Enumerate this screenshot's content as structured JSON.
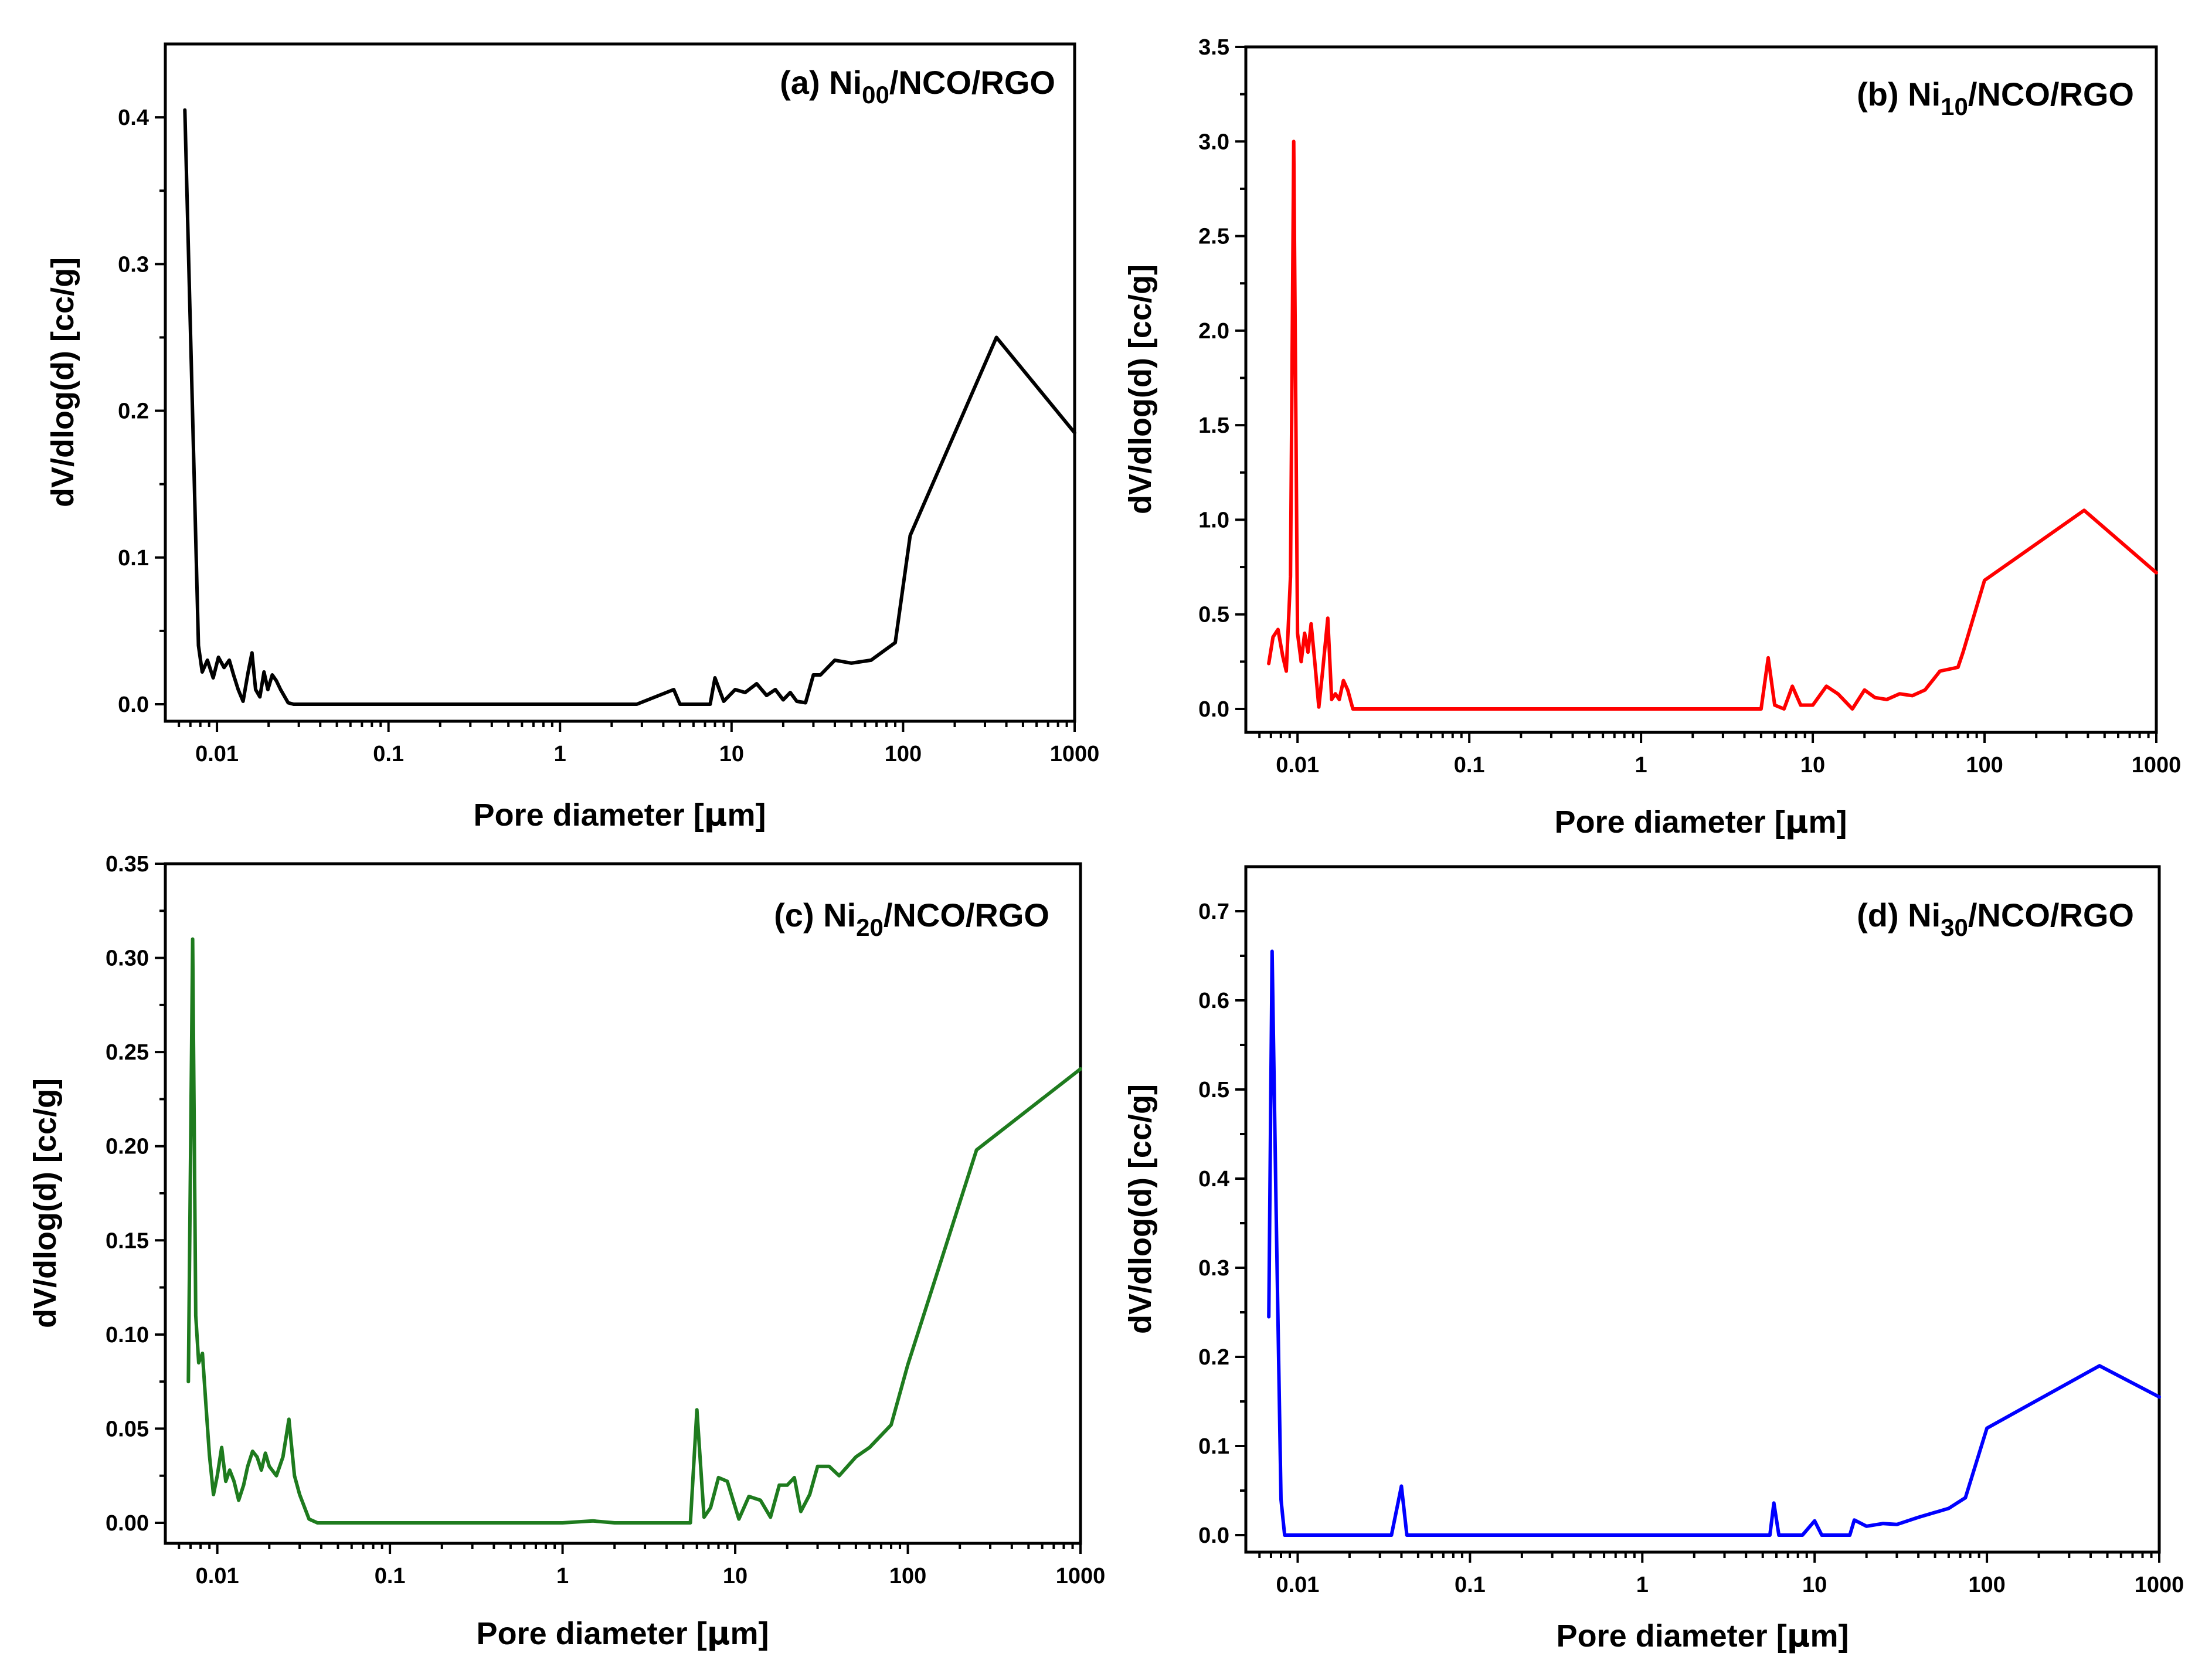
{
  "figure": {
    "x_tick_labels": [
      "0.01",
      "0.1",
      "1",
      "10",
      "100",
      "1000"
    ],
    "mu_char": "μ"
  },
  "chart_data": [
    {
      "type": "line",
      "panel": "a",
      "title_parts": [
        "(a) Ni",
        "00",
        "/NCO/RGO"
      ],
      "color": "#000000",
      "xlabel": "Pore diameter [μm]",
      "xlabel_parts": [
        "Pore diameter [",
        "μ",
        "m]"
      ],
      "ylabel": "dV/dlog(d) [cc/g]",
      "xscale": "log",
      "xlim": [
        0.005,
        1000
      ],
      "ylim": [
        -0.01,
        0.45
      ],
      "yticks": [
        0.0,
        0.1,
        0.2,
        0.3,
        0.4
      ],
      "ytick_labels": [
        "0.0",
        "0.1",
        "0.2",
        "0.3",
        "0.4"
      ],
      "x": [
        0.0065,
        0.0078,
        0.0082,
        0.0088,
        0.0095,
        0.0102,
        0.011,
        0.0118,
        0.0125,
        0.0133,
        0.0142,
        0.0152,
        0.016,
        0.0168,
        0.0178,
        0.0188,
        0.0198,
        0.021,
        0.0222,
        0.0235,
        0.026,
        0.028,
        0.1,
        1,
        2.8,
        4.6,
        5.0,
        7.5,
        8.0,
        9.0,
        10.5,
        12,
        14,
        16,
        18,
        20,
        22,
        24,
        27,
        30,
        33,
        40,
        50,
        65,
        90,
        110,
        350,
        1000
      ],
      "y": [
        0.405,
        0.04,
        0.022,
        0.03,
        0.018,
        0.032,
        0.025,
        0.03,
        0.02,
        0.01,
        0.002,
        0.022,
        0.035,
        0.01,
        0.005,
        0.022,
        0.01,
        0.02,
        0.016,
        0.01,
        0.001,
        0.0,
        0.0,
        0.0,
        0.0,
        0.01,
        0.0,
        0.0,
        0.018,
        0.002,
        0.01,
        0.008,
        0.014,
        0.006,
        0.01,
        0.003,
        0.008,
        0.002,
        0.001,
        0.02,
        0.02,
        0.03,
        0.028,
        0.03,
        0.042,
        0.115,
        0.25,
        0.185
      ]
    },
    {
      "type": "line",
      "panel": "b",
      "title_parts": [
        "(b) Ni",
        "10",
        "/NCO/RGO"
      ],
      "color": "#ff0000",
      "xlabel": "Pore diameter [μm]",
      "xlabel_parts": [
        "Pore diameter [",
        "μ",
        "m]"
      ],
      "ylabel": "dV/dlog(d) [cc/g]",
      "xscale": "log",
      "xlim": [
        0.005,
        1000
      ],
      "ylim": [
        -0.1,
        3.5
      ],
      "yticks": [
        0.0,
        0.5,
        1.0,
        1.5,
        2.0,
        2.5,
        3.0,
        3.5
      ],
      "ytick_labels": [
        "0.0",
        "0.5",
        "1.0",
        "1.5",
        "2.0",
        "2.5",
        "3.0",
        "3.5"
      ],
      "x": [
        0.0068,
        0.0072,
        0.0077,
        0.0082,
        0.0086,
        0.0091,
        0.0095,
        0.01,
        0.0105,
        0.011,
        0.0115,
        0.012,
        0.0126,
        0.0133,
        0.014,
        0.015,
        0.0158,
        0.0166,
        0.0175,
        0.0185,
        0.0196,
        0.021,
        0.1,
        1,
        5.0,
        5.5,
        6.0,
        6.8,
        7.6,
        8.5,
        10,
        12,
        14,
        17,
        20,
        23,
        27,
        32,
        38,
        45,
        55,
        70,
        75,
        100,
        380,
        1000
      ],
      "y": [
        0.24,
        0.38,
        0.42,
        0.28,
        0.2,
        0.7,
        3.0,
        0.4,
        0.25,
        0.4,
        0.3,
        0.45,
        0.25,
        0.01,
        0.2,
        0.48,
        0.05,
        0.08,
        0.05,
        0.15,
        0.1,
        0.0,
        0.0,
        0.0,
        0.0,
        0.27,
        0.02,
        0.0,
        0.12,
        0.02,
        0.02,
        0.12,
        0.08,
        0.0,
        0.1,
        0.06,
        0.05,
        0.08,
        0.07,
        0.1,
        0.2,
        0.22,
        0.3,
        0.68,
        1.05,
        0.72
      ]
    },
    {
      "type": "line",
      "panel": "c",
      "title_parts": [
        "(c) Ni",
        "20",
        "/NCO/RGO"
      ],
      "color": "#1e7b1e",
      "xlabel": "Pore diameter [μm]",
      "xlabel_parts": [
        "Pore diameter [",
        "μ",
        "m]"
      ],
      "ylabel": "dV/dlog(d) [cc/g]",
      "xscale": "log",
      "xlim": [
        0.005,
        1000
      ],
      "ylim": [
        -0.005,
        0.35
      ],
      "yticks": [
        0.0,
        0.05,
        0.1,
        0.15,
        0.2,
        0.25,
        0.3,
        0.35
      ],
      "ytick_labels": [
        "0.00",
        "0.05",
        "0.10",
        "0.15",
        "0.20",
        "0.25",
        "0.30",
        "0.35"
      ],
      "x": [
        0.0068,
        0.0072,
        0.0075,
        0.0078,
        0.0082,
        0.0086,
        0.009,
        0.0095,
        0.01,
        0.0106,
        0.0112,
        0.0118,
        0.0125,
        0.0133,
        0.0142,
        0.015,
        0.016,
        0.017,
        0.018,
        0.019,
        0.02,
        0.022,
        0.024,
        0.026,
        0.028,
        0.03,
        0.034,
        0.038,
        0.1,
        0.5,
        1,
        1.5,
        2,
        3,
        5.5,
        6.0,
        6.6,
        7.2,
        8.0,
        9.0,
        10.5,
        12,
        14,
        16,
        18,
        20,
        22,
        24,
        27,
        30,
        35,
        40,
        50,
        60,
        80,
        100,
        250,
        1000
      ],
      "y": [
        0.075,
        0.31,
        0.11,
        0.085,
        0.09,
        0.062,
        0.036,
        0.015,
        0.025,
        0.04,
        0.022,
        0.028,
        0.022,
        0.012,
        0.02,
        0.03,
        0.038,
        0.035,
        0.028,
        0.037,
        0.03,
        0.025,
        0.035,
        0.055,
        0.025,
        0.015,
        0.002,
        0.0,
        0.0,
        0.0,
        0.0,
        0.001,
        0.0,
        0.0,
        0.0,
        0.06,
        0.003,
        0.008,
        0.024,
        0.022,
        0.002,
        0.014,
        0.012,
        0.003,
        0.02,
        0.02,
        0.024,
        0.006,
        0.015,
        0.03,
        0.03,
        0.025,
        0.035,
        0.04,
        0.052,
        0.084,
        0.198,
        0.241
      ]
    },
    {
      "type": "line",
      "panel": "d",
      "title_parts": [
        "(d) Ni",
        "30",
        "/NCO/RGO"
      ],
      "color": "#0000ff",
      "xlabel": "Pore diameter [μm]",
      "xlabel_parts": [
        "Pore diameter [",
        "μ",
        "m]"
      ],
      "ylabel": "dV/dlog(d) [cc/g]",
      "xscale": "log",
      "xlim": [
        0.005,
        1000
      ],
      "ylim": [
        -0.01,
        0.75
      ],
      "yticks": [
        0.0,
        0.1,
        0.2,
        0.3,
        0.4,
        0.5,
        0.6,
        0.7
      ],
      "ytick_labels": [
        "0.0",
        "0.1",
        "0.2",
        "0.3",
        "0.4",
        "0.5",
        "0.6",
        "0.7"
      ],
      "x": [
        0.0068,
        0.0071,
        0.0075,
        0.008,
        0.0084,
        0.009,
        0.01,
        0.035,
        0.04,
        0.043,
        0.1,
        1,
        5.5,
        5.8,
        6.2,
        8.5,
        10,
        11,
        12,
        16,
        17,
        20,
        25,
        30,
        40,
        60,
        75,
        100,
        450,
        1000
      ],
      "y": [
        0.245,
        0.655,
        0.36,
        0.04,
        0.0,
        0.0,
        0.0,
        0.0,
        0.055,
        0.0,
        0.0,
        0.0,
        0.0,
        0.036,
        0.0,
        0.0,
        0.016,
        0.0,
        0.0,
        0.0,
        0.017,
        0.01,
        0.013,
        0.012,
        0.02,
        0.03,
        0.042,
        0.12,
        0.19,
        0.155
      ]
    }
  ]
}
